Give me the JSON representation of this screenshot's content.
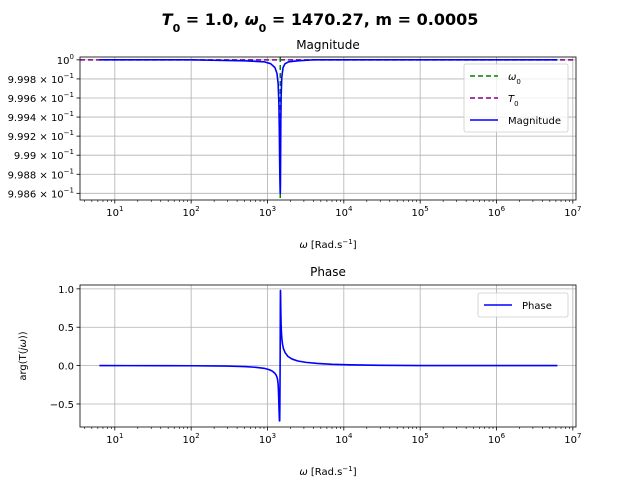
{
  "figure": {
    "title_parts": [
      {
        "text": "T",
        "style": "italic"
      },
      {
        "text": "0",
        "style": "sub"
      },
      {
        "text": " = 1.0, ",
        "style": "normal"
      },
      {
        "text": "ω",
        "style": "italic"
      },
      {
        "text": "0",
        "style": "sub"
      },
      {
        "text": " = 1470.27, m = 0.0005",
        "style": "normal"
      }
    ]
  },
  "chart_data": [
    {
      "type": "line",
      "title": "Magnitude",
      "xscale": "log",
      "xlim": [
        3.5,
        11000000
      ],
      "ylim": [
        0.99853,
        1.00003
      ],
      "grid": true,
      "legend_position": "upper-right",
      "xlabel_parts": [
        {
          "text": "ω",
          "style": "italic"
        },
        {
          "text": " [Rad.s",
          "style": "normal"
        },
        {
          "text": "−1",
          "style": "sup"
        },
        {
          "text": "]",
          "style": "normal"
        }
      ],
      "ylabel": "",
      "x_ticks": [
        {
          "value": 10,
          "base": "10",
          "exp": "1"
        },
        {
          "value": 100,
          "base": "10",
          "exp": "2"
        },
        {
          "value": 1000,
          "base": "10",
          "exp": "3"
        },
        {
          "value": 10000,
          "base": "10",
          "exp": "4"
        },
        {
          "value": 100000,
          "base": "10",
          "exp": "5"
        },
        {
          "value": 1000000,
          "base": "10",
          "exp": "6"
        },
        {
          "value": 10000000,
          "base": "10",
          "exp": "7"
        }
      ],
      "y_ticks": [
        {
          "value": 1.0,
          "mant": "",
          "base": "10",
          "exp": "0"
        },
        {
          "value": 0.9998,
          "mant": "9.998 × ",
          "base": "10",
          "exp": "−1"
        },
        {
          "value": 0.9996,
          "mant": "9.996 × ",
          "base": "10",
          "exp": "−1"
        },
        {
          "value": 0.9994,
          "mant": "9.994 × ",
          "base": "10",
          "exp": "−1"
        },
        {
          "value": 0.9992,
          "mant": "9.992 × ",
          "base": "10",
          "exp": "−1"
        },
        {
          "value": 0.999,
          "mant": "9.99 × ",
          "base": "10",
          "exp": "−1"
        },
        {
          "value": 0.9988,
          "mant": "9.988 × ",
          "base": "10",
          "exp": "−1"
        },
        {
          "value": 0.9986,
          "mant": "9.986 × ",
          "base": "10",
          "exp": "−1"
        }
      ],
      "vlines": [
        {
          "name": "ω0",
          "label_parts": [
            {
              "text": "ω",
              "style": "italic"
            },
            {
              "text": "0",
              "style": "sub"
            }
          ],
          "x": 1470.27,
          "color": "#008000",
          "dash": "dashed"
        }
      ],
      "hlines": [
        {
          "name": "T0",
          "label_parts": [
            {
              "text": "T",
              "style": "italic"
            },
            {
              "text": "0",
              "style": "sub"
            }
          ],
          "y": 1.0,
          "color": "#800080",
          "dash": "dashed"
        }
      ],
      "series": [
        {
          "name": "Magnitude",
          "color": "#0000ff",
          "x": [
            6.28,
            100,
            500,
            900,
            1100,
            1250,
            1330,
            1380,
            1410,
            1430,
            1445,
            1455,
            1462,
            1466,
            1470.27,
            1474,
            1478,
            1485,
            1495,
            1510,
            1540,
            1600,
            1700,
            1900,
            2500,
            4000,
            10000,
            100000,
            6280000
          ],
          "y": [
            1.0,
            1.0,
            0.99999,
            0.99998,
            0.99996,
            0.99992,
            0.99986,
            0.99975,
            0.99955,
            0.99925,
            0.9989,
            0.99874,
            0.99866,
            0.99862,
            0.9986,
            0.99863,
            0.9987,
            0.99895,
            0.99935,
            0.99962,
            0.99982,
            0.99992,
            0.99996,
            0.99998,
            0.99999,
            1.0,
            1.0,
            1.0,
            1.0
          ]
        }
      ]
    },
    {
      "type": "line",
      "title": "Phase",
      "xscale": "log",
      "xlim": [
        3.5,
        11000000
      ],
      "ylim": [
        -0.8,
        1.05
      ],
      "grid": true,
      "legend_position": "upper-right",
      "xlabel_parts": [
        {
          "text": "ω",
          "style": "italic"
        },
        {
          "text": " [Rad.s",
          "style": "normal"
        },
        {
          "text": "−1",
          "style": "sup"
        },
        {
          "text": "]",
          "style": "normal"
        }
      ],
      "ylabel_parts": [
        {
          "text": "arg(T(",
          "style": "normal"
        },
        {
          "text": "jω",
          "style": "italic"
        },
        {
          "text": "))",
          "style": "normal"
        }
      ],
      "x_ticks": [
        {
          "value": 10,
          "base": "10",
          "exp": "1"
        },
        {
          "value": 100,
          "base": "10",
          "exp": "2"
        },
        {
          "value": 1000,
          "base": "10",
          "exp": "3"
        },
        {
          "value": 10000,
          "base": "10",
          "exp": "4"
        },
        {
          "value": 100000,
          "base": "10",
          "exp": "5"
        },
        {
          "value": 1000000,
          "base": "10",
          "exp": "6"
        },
        {
          "value": 10000000,
          "base": "10",
          "exp": "7"
        }
      ],
      "y_ticks": [
        {
          "value": 1.0,
          "label": "1.0"
        },
        {
          "value": 0.5,
          "label": "0.5"
        },
        {
          "value": 0.0,
          "label": "0.0"
        },
        {
          "value": -0.5,
          "label": "−0.5"
        }
      ],
      "series": [
        {
          "name": "Phase",
          "color": "#0000ff",
          "x": [
            6.28,
            50,
            100,
            200,
            300,
            500,
            700,
            900,
            1050,
            1150,
            1250,
            1300,
            1340,
            1360,
            1375,
            1385,
            1395,
            1405,
            1420,
            1435,
            1445,
            1452,
            1458,
            1462,
            1466,
            1470,
            1474,
            1478,
            1482,
            1486,
            1491,
            1497,
            1505,
            1515,
            1530,
            1550,
            1580,
            1620,
            1700,
            1850,
            2100,
            2500,
            3200,
            4500,
            7000,
            12000,
            30000,
            100000,
            6280000
          ],
          "y": [
            0.0,
            -0.001,
            -0.002,
            -0.004,
            -0.006,
            -0.013,
            -0.022,
            -0.035,
            -0.052,
            -0.07,
            -0.1,
            -0.125,
            -0.16,
            -0.19,
            -0.23,
            -0.28,
            -0.35,
            -0.45,
            -0.6,
            -0.72,
            -0.72,
            -0.55,
            -0.3,
            -0.08,
            0.15,
            0.5,
            0.8,
            0.98,
            0.96,
            0.88,
            0.78,
            0.68,
            0.57,
            0.48,
            0.4,
            0.33,
            0.27,
            0.22,
            0.17,
            0.12,
            0.085,
            0.06,
            0.042,
            0.028,
            0.017,
            0.01,
            0.004,
            0.001,
            0.0
          ]
        }
      ]
    }
  ]
}
